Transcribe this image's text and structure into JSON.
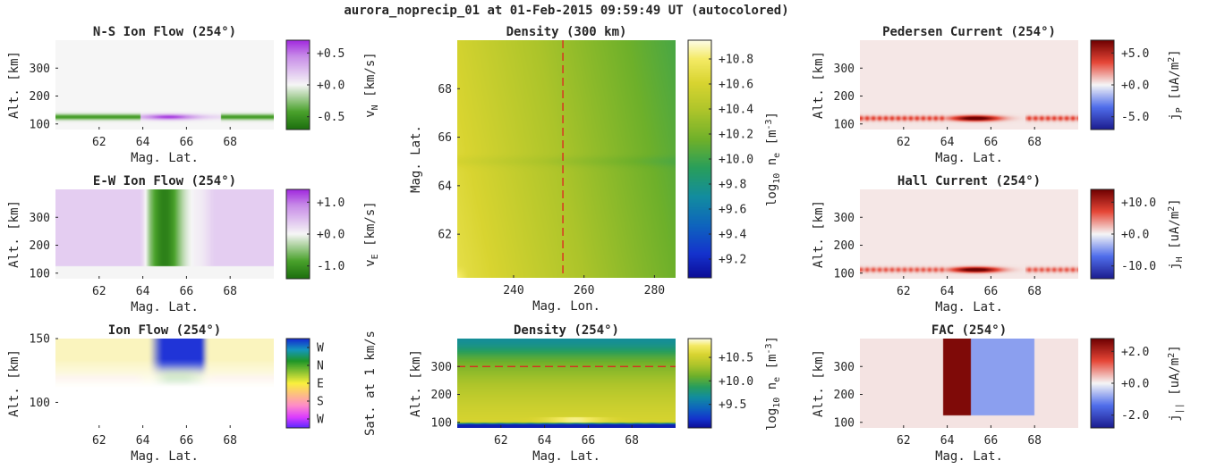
{
  "figure_title": "aurora_noprecip_01 at 01-Feb-2015 09:59:49 UT (autocolored)",
  "chart_data": [
    {
      "id": "ns_flow",
      "type": "heatmap",
      "title": "N-S Ion Flow (254°)",
      "xlabel": "Mag. Lat.",
      "ylabel": "Alt. [km]",
      "xlim": [
        60,
        70
      ],
      "ylim": [
        80,
        400
      ],
      "xticks": [
        "62",
        "64",
        "66",
        "68"
      ],
      "yticks": [
        "100",
        "200",
        "300"
      ],
      "colorbar": {
        "scheme": "purple-white-green",
        "ticks": [
          "+0.5",
          "+0.0",
          "-0.5"
        ],
        "label": "v_N [km/s]",
        "range": [
          -0.7,
          0.7
        ]
      },
      "field": {
        "kind": "ns",
        "peak_lat": 65.2,
        "peak_alt": 125,
        "peak_value": 0.55,
        "band_value": -0.45,
        "gap": [
          63.9,
          67.6
        ]
      }
    },
    {
      "id": "ew_flow",
      "type": "heatmap",
      "title": "E-W Ion Flow (254°)",
      "xlabel": "Mag. Lat.",
      "ylabel": "Alt. [km]",
      "xlim": [
        60,
        70
      ],
      "ylim": [
        80,
        400
      ],
      "xticks": [
        "62",
        "64",
        "66",
        "68"
      ],
      "yticks": [
        "100",
        "200",
        "300"
      ],
      "colorbar": {
        "scheme": "purple-white-green",
        "ticks": [
          "+1.0",
          "+0.0",
          "-1.0"
        ],
        "label": "v_E [km/s]",
        "range": [
          -1.4,
          1.4
        ]
      },
      "field": {
        "kind": "ew",
        "background": 0.35,
        "min_value": -1.2,
        "min_lat": 65.0,
        "bottom_alt": 125
      }
    },
    {
      "id": "ion_flow",
      "type": "heatmap",
      "title": "Ion Flow (254°)",
      "xlabel": "Mag. Lat.",
      "ylabel": "Alt. [km]",
      "xlim": [
        60,
        70
      ],
      "ylim": [
        80,
        150
      ],
      "xticks": [
        "62",
        "64",
        "66",
        "68"
      ],
      "yticks": [
        "100",
        "150"
      ],
      "colorbar": {
        "scheme": "direction",
        "ticks": [
          "W",
          "N",
          "E",
          "S",
          "W"
        ],
        "label": "Sat. at 1 km/s"
      },
      "field": {
        "kind": "dir"
      }
    },
    {
      "id": "density_300",
      "type": "heatmap",
      "title": "Density (300 km)",
      "xlabel": "Mag. Lon.",
      "ylabel": "Mag. Lat.",
      "xlim": [
        224,
        286
      ],
      "ylim": [
        60.2,
        70
      ],
      "xticks": [
        "240",
        "260",
        "280"
      ],
      "yticks": [
        "62",
        "64",
        "66",
        "68"
      ],
      "colorbar": {
        "scheme": "parula",
        "ticks": [
          "+10.8",
          "+10.6",
          "+10.4",
          "+10.2",
          "+10.0",
          "+9.8",
          "+9.6",
          "+9.4",
          "+9.2"
        ],
        "label": "log10 n_e [m^-3]",
        "range": [
          9.05,
          10.95
        ]
      },
      "marker_line": {
        "axis": "x",
        "value": 254
      },
      "field": {
        "kind": "dens_map"
      }
    },
    {
      "id": "density_254",
      "type": "heatmap",
      "title": "Density (254°)",
      "xlabel": "Mag. Lat.",
      "ylabel": "Alt. [km]",
      "xlim": [
        60,
        70
      ],
      "ylim": [
        80,
        400
      ],
      "xticks": [
        "62",
        "64",
        "66",
        "68"
      ],
      "yticks": [
        "100",
        "200",
        "300"
      ],
      "colorbar": {
        "scheme": "parula",
        "ticks": [
          "+10.5",
          "+10.0",
          "+9.5"
        ],
        "label": "log10 n_e [m^-3]",
        "range": [
          9.0,
          10.9
        ]
      },
      "marker_line": {
        "axis": "y",
        "value": 300
      },
      "field": {
        "kind": "dens_alt"
      }
    },
    {
      "id": "pedersen",
      "type": "heatmap",
      "title": "Pedersen Current (254°)",
      "xlabel": "Mag. Lat.",
      "ylabel": "Alt. [km]",
      "xlim": [
        60,
        70
      ],
      "ylim": [
        80,
        400
      ],
      "xticks": [
        "62",
        "64",
        "66",
        "68"
      ],
      "yticks": [
        "100",
        "200",
        "300"
      ],
      "colorbar": {
        "scheme": "blue-white-red",
        "ticks": [
          "+5.0",
          "+0.0",
          "-5.0"
        ],
        "label": "j_P [uA/m^2]",
        "range": [
          -7,
          7
        ]
      },
      "field": {
        "kind": "cur",
        "background": 0.3,
        "band_value": 3.5,
        "peak_value": 8.0,
        "band_alt": 120,
        "gap": [
          63.9,
          67.6
        ]
      }
    },
    {
      "id": "hall",
      "type": "heatmap",
      "title": "Hall Current (254°)",
      "xlabel": "Mag. Lat.",
      "ylabel": "Alt. [km]",
      "xlim": [
        60,
        70
      ],
      "ylim": [
        80,
        400
      ],
      "xticks": [
        "62",
        "64",
        "66",
        "68"
      ],
      "yticks": [
        "100",
        "200",
        "300"
      ],
      "colorbar": {
        "scheme": "blue-white-red",
        "ticks": [
          "+10.0",
          "+0.0",
          "-10.0"
        ],
        "label": "j_H [uA/m^2]",
        "range": [
          -14,
          14
        ]
      },
      "field": {
        "kind": "cur",
        "background": 0.6,
        "band_value": 6.0,
        "peak_value": 16.0,
        "band_alt": 112,
        "gap": [
          63.9,
          67.6
        ]
      }
    },
    {
      "id": "fac",
      "type": "heatmap",
      "title": "FAC (254°)",
      "xlabel": "Mag. Lat.",
      "ylabel": "Alt. [km]",
      "xlim": [
        60,
        70
      ],
      "ylim": [
        80,
        400
      ],
      "xticks": [
        "62",
        "64",
        "66",
        "68"
      ],
      "yticks": [
        "100",
        "200",
        "300"
      ],
      "colorbar": {
        "scheme": "blue-white-red",
        "ticks": [
          "+2.0",
          "+0.0",
          "-2.0"
        ],
        "label": "j_|| [uA/m^2]",
        "range": [
          -2.8,
          2.8
        ]
      },
      "field": {
        "kind": "fac",
        "background": 0.15,
        "pos_value": 2.6,
        "pos_lat": [
          63.8,
          65.1
        ],
        "neg_value": -0.9,
        "neg_lat": [
          65.1,
          68.0
        ],
        "bottom_alt": 125
      }
    }
  ]
}
